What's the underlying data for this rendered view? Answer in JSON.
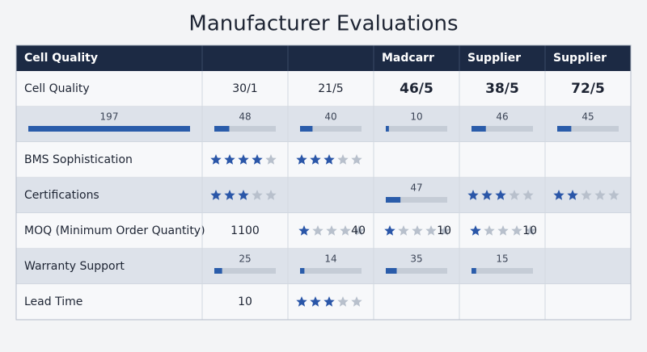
{
  "title": "Manufacturer Evaluations",
  "table": {
    "header": [
      "Cell Quality",
      null,
      null,
      "Madcarr",
      "Supplier",
      "Supplier"
    ],
    "rows": [
      [
        "Cell Quality",
        "30/1",
        "21/5",
        "46/5",
        "38/5",
        "72/5"
      ],
      [
        {
          "bar": 197
        },
        {
          "bar": 48
        },
        {
          "bar": 40
        },
        {
          "bar": 10
        },
        {
          "bar": 46
        },
        {
          "bar": 45
        }
      ],
      [
        "BMS Sophistication",
        {
          "stars": 4
        },
        {
          "stars": 3
        },
        null,
        null,
        null
      ],
      [
        "Certifications",
        {
          "stars": 3
        },
        null,
        {
          "bar": 47
        },
        {
          "stars": 3
        },
        {
          "stars": 2
        }
      ],
      [
        "MOQ (Minimum Order Quantity)",
        "1100",
        {
          "stars": 1,
          "text": "40"
        },
        {
          "stars": 1,
          "text": "10"
        },
        {
          "stars": 1,
          "text": "10"
        },
        null
      ],
      [
        "Warranty Support",
        {
          "bar": 25
        },
        {
          "bar": 14
        },
        {
          "bar": 35
        },
        {
          "bar": 15
        },
        null
      ],
      [
        "Lead Time",
        "10",
        {
          "stars": 3
        },
        null,
        null,
        null
      ]
    ]
  }
}
